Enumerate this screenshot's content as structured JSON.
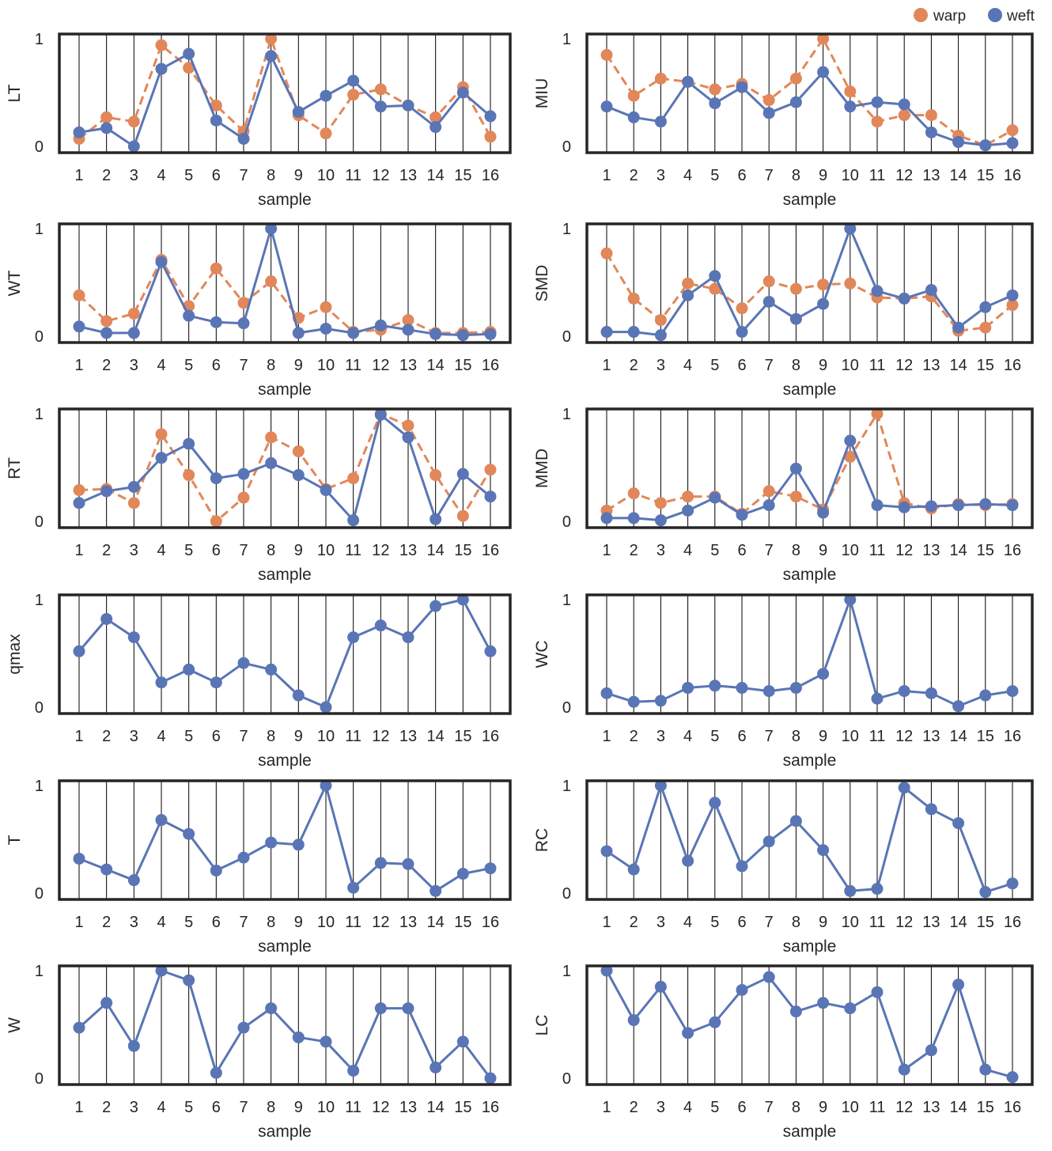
{
  "legend": [
    {
      "label": "warp",
      "color": "#E1875A"
    },
    {
      "label": "weft",
      "color": "#5975B5"
    }
  ],
  "chart_data": [
    {
      "type": "line",
      "ylabel": "LT",
      "xlabel": "sample",
      "categories": [
        "1",
        "2",
        "3",
        "4",
        "5",
        "6",
        "7",
        "8",
        "9",
        "10",
        "11",
        "12",
        "13",
        "14",
        "15",
        "16"
      ],
      "yticks": [
        "0",
        "1"
      ],
      "ylim": [
        0,
        1
      ],
      "series": [
        {
          "name": "warp",
          "style": "dashed",
          "values": [
            0.07,
            0.27,
            0.23,
            0.94,
            0.73,
            0.38,
            0.14,
            1.0,
            0.29,
            0.12,
            0.48,
            0.53,
            0.38,
            0.27,
            0.55,
            0.09
          ]
        },
        {
          "name": "weft",
          "style": "solid",
          "values": [
            0.13,
            0.17,
            0.0,
            0.72,
            0.86,
            0.24,
            0.07,
            0.84,
            0.32,
            0.47,
            0.61,
            0.37,
            0.38,
            0.18,
            0.5,
            0.28
          ]
        }
      ]
    },
    {
      "type": "line",
      "ylabel": "MIU",
      "xlabel": "sample",
      "categories": [
        "1",
        "2",
        "3",
        "4",
        "5",
        "6",
        "7",
        "8",
        "9",
        "10",
        "11",
        "12",
        "13",
        "14",
        "15",
        "16"
      ],
      "yticks": [
        "0",
        "1"
      ],
      "ylim": [
        0,
        1
      ],
      "series": [
        {
          "name": "warp",
          "style": "dashed",
          "values": [
            0.85,
            0.47,
            0.63,
            0.6,
            0.53,
            0.58,
            0.43,
            0.63,
            1.0,
            0.51,
            0.23,
            0.29,
            0.29,
            0.1,
            0.01,
            0.15
          ]
        },
        {
          "name": "weft",
          "style": "solid",
          "values": [
            0.37,
            0.27,
            0.23,
            0.6,
            0.4,
            0.55,
            0.31,
            0.41,
            0.69,
            0.37,
            0.41,
            0.39,
            0.13,
            0.04,
            0.01,
            0.03
          ]
        }
      ]
    },
    {
      "type": "line",
      "ylabel": "WT",
      "xlabel": "sample",
      "categories": [
        "1",
        "2",
        "3",
        "4",
        "5",
        "6",
        "7",
        "8",
        "9",
        "10",
        "11",
        "12",
        "13",
        "14",
        "15",
        "16"
      ],
      "yticks": [
        "0",
        "1"
      ],
      "ylim": [
        0,
        1
      ],
      "series": [
        {
          "name": "warp",
          "style": "dashed",
          "values": [
            0.38,
            0.14,
            0.21,
            0.71,
            0.28,
            0.63,
            0.31,
            0.51,
            0.17,
            0.27,
            0.04,
            0.06,
            0.15,
            0.03,
            0.03,
            0.04
          ]
        },
        {
          "name": "weft",
          "style": "solid",
          "values": [
            0.09,
            0.03,
            0.03,
            0.69,
            0.19,
            0.13,
            0.12,
            1.0,
            0.03,
            0.07,
            0.03,
            0.1,
            0.06,
            0.02,
            0.01,
            0.02
          ]
        }
      ]
    },
    {
      "type": "line",
      "ylabel": "SMD",
      "xlabel": "sample",
      "categories": [
        "1",
        "2",
        "3",
        "4",
        "5",
        "6",
        "7",
        "8",
        "9",
        "10",
        "11",
        "12",
        "13",
        "14",
        "15",
        "16"
      ],
      "yticks": [
        "0",
        "1"
      ],
      "ylim": [
        0,
        1
      ],
      "series": [
        {
          "name": "warp",
          "style": "dashed",
          "values": [
            0.77,
            0.35,
            0.15,
            0.49,
            0.44,
            0.26,
            0.51,
            0.44,
            0.48,
            0.49,
            0.36,
            0.35,
            0.37,
            0.05,
            0.08,
            0.29
          ]
        },
        {
          "name": "weft",
          "style": "solid",
          "values": [
            0.04,
            0.04,
            0.01,
            0.38,
            0.56,
            0.04,
            0.32,
            0.16,
            0.3,
            1.0,
            0.42,
            0.35,
            0.43,
            0.08,
            0.27,
            0.38
          ]
        }
      ]
    },
    {
      "type": "line",
      "ylabel": "RT",
      "xlabel": "sample",
      "categories": [
        "1",
        "2",
        "3",
        "4",
        "5",
        "6",
        "7",
        "8",
        "9",
        "10",
        "11",
        "12",
        "13",
        "14",
        "15",
        "16"
      ],
      "yticks": [
        "0",
        "1"
      ],
      "ylim": [
        0,
        1
      ],
      "series": [
        {
          "name": "warp",
          "style": "dashed",
          "values": [
            0.29,
            0.3,
            0.17,
            0.81,
            0.43,
            0.0,
            0.22,
            0.78,
            0.65,
            0.3,
            0.4,
            1.0,
            0.89,
            0.43,
            0.05,
            0.48
          ]
        },
        {
          "name": "weft",
          "style": "solid",
          "values": [
            0.17,
            0.28,
            0.32,
            0.59,
            0.72,
            0.4,
            0.44,
            0.54,
            0.43,
            0.29,
            0.01,
            0.99,
            0.78,
            0.02,
            0.44,
            0.23
          ]
        }
      ]
    },
    {
      "type": "line",
      "ylabel": "MMD",
      "xlabel": "sample",
      "categories": [
        "1",
        "2",
        "3",
        "4",
        "5",
        "6",
        "7",
        "8",
        "9",
        "10",
        "11",
        "12",
        "13",
        "14",
        "15",
        "16"
      ],
      "yticks": [
        "0",
        "1"
      ],
      "ylim": [
        0,
        1
      ],
      "series": [
        {
          "name": "warp",
          "style": "dashed",
          "values": [
            0.1,
            0.26,
            0.17,
            0.23,
            0.23,
            0.07,
            0.28,
            0.23,
            0.11,
            0.6,
            1.0,
            0.17,
            0.12,
            0.16,
            0.15,
            0.16
          ]
        },
        {
          "name": "weft",
          "style": "solid",
          "values": [
            0.03,
            0.03,
            0.01,
            0.1,
            0.22,
            0.06,
            0.15,
            0.49,
            0.08,
            0.75,
            0.15,
            0.13,
            0.14,
            0.15,
            0.16,
            0.15
          ]
        }
      ]
    },
    {
      "type": "line",
      "ylabel": "qmax",
      "xlabel": "sample",
      "categories": [
        "1",
        "2",
        "3",
        "4",
        "5",
        "6",
        "7",
        "8",
        "9",
        "10",
        "11",
        "12",
        "13",
        "14",
        "15",
        "16"
      ],
      "yticks": [
        "0",
        "1"
      ],
      "ylim": [
        0,
        1
      ],
      "series": [
        {
          "name": "weft",
          "style": "solid",
          "values": [
            0.52,
            0.82,
            0.65,
            0.23,
            0.35,
            0.23,
            0.41,
            0.35,
            0.11,
            0.0,
            0.65,
            0.76,
            0.65,
            0.94,
            1.0,
            0.52
          ]
        }
      ]
    },
    {
      "type": "line",
      "ylabel": "WC",
      "xlabel": "sample",
      "categories": [
        "1",
        "2",
        "3",
        "4",
        "5",
        "6",
        "7",
        "8",
        "9",
        "10",
        "11",
        "12",
        "13",
        "14",
        "15",
        "16"
      ],
      "yticks": [
        "0",
        "1"
      ],
      "ylim": [
        0,
        1
      ],
      "series": [
        {
          "name": "weft",
          "style": "solid",
          "values": [
            0.13,
            0.05,
            0.06,
            0.18,
            0.2,
            0.18,
            0.15,
            0.18,
            0.31,
            1.0,
            0.08,
            0.15,
            0.13,
            0.01,
            0.11,
            0.15
          ]
        }
      ]
    },
    {
      "type": "line",
      "ylabel": "T",
      "xlabel": "sample",
      "categories": [
        "1",
        "2",
        "3",
        "4",
        "5",
        "6",
        "7",
        "8",
        "9",
        "10",
        "11",
        "12",
        "13",
        "14",
        "15",
        "16"
      ],
      "yticks": [
        "0",
        "1"
      ],
      "ylim": [
        0,
        1
      ],
      "series": [
        {
          "name": "weft",
          "style": "solid",
          "values": [
            0.32,
            0.22,
            0.12,
            0.68,
            0.55,
            0.21,
            0.33,
            0.47,
            0.45,
            1.0,
            0.05,
            0.28,
            0.27,
            0.02,
            0.18,
            0.23
          ]
        }
      ]
    },
    {
      "type": "line",
      "ylabel": "RC",
      "xlabel": "sample",
      "categories": [
        "1",
        "2",
        "3",
        "4",
        "5",
        "6",
        "7",
        "8",
        "9",
        "10",
        "11",
        "12",
        "13",
        "14",
        "15",
        "16"
      ],
      "yticks": [
        "0",
        "1"
      ],
      "ylim": [
        0,
        1
      ],
      "series": [
        {
          "name": "weft",
          "style": "solid",
          "values": [
            0.39,
            0.22,
            1.0,
            0.3,
            0.84,
            0.25,
            0.48,
            0.67,
            0.4,
            0.02,
            0.04,
            0.98,
            0.78,
            0.65,
            0.01,
            0.09
          ]
        }
      ]
    },
    {
      "type": "line",
      "ylabel": "W",
      "xlabel": "sample",
      "categories": [
        "1",
        "2",
        "3",
        "4",
        "5",
        "6",
        "7",
        "8",
        "9",
        "10",
        "11",
        "12",
        "13",
        "14",
        "15",
        "16"
      ],
      "yticks": [
        "0",
        "1"
      ],
      "ylim": [
        0,
        1
      ],
      "series": [
        {
          "name": "weft",
          "style": "solid",
          "values": [
            0.47,
            0.7,
            0.3,
            1.0,
            0.91,
            0.05,
            0.47,
            0.65,
            0.38,
            0.34,
            0.07,
            0.65,
            0.65,
            0.1,
            0.34,
            0.0
          ]
        }
      ]
    },
    {
      "type": "line",
      "ylabel": "LC",
      "xlabel": "sample",
      "categories": [
        "1",
        "2",
        "3",
        "4",
        "5",
        "6",
        "7",
        "8",
        "9",
        "10",
        "11",
        "12",
        "13",
        "14",
        "15",
        "16"
      ],
      "yticks": [
        "0",
        "1"
      ],
      "ylim": [
        0,
        1
      ],
      "series": [
        {
          "name": "weft",
          "style": "solid",
          "values": [
            1.0,
            0.54,
            0.85,
            0.42,
            0.52,
            0.82,
            0.94,
            0.62,
            0.7,
            0.65,
            0.8,
            0.08,
            0.26,
            0.87,
            0.08,
            0.01
          ]
        }
      ]
    }
  ]
}
